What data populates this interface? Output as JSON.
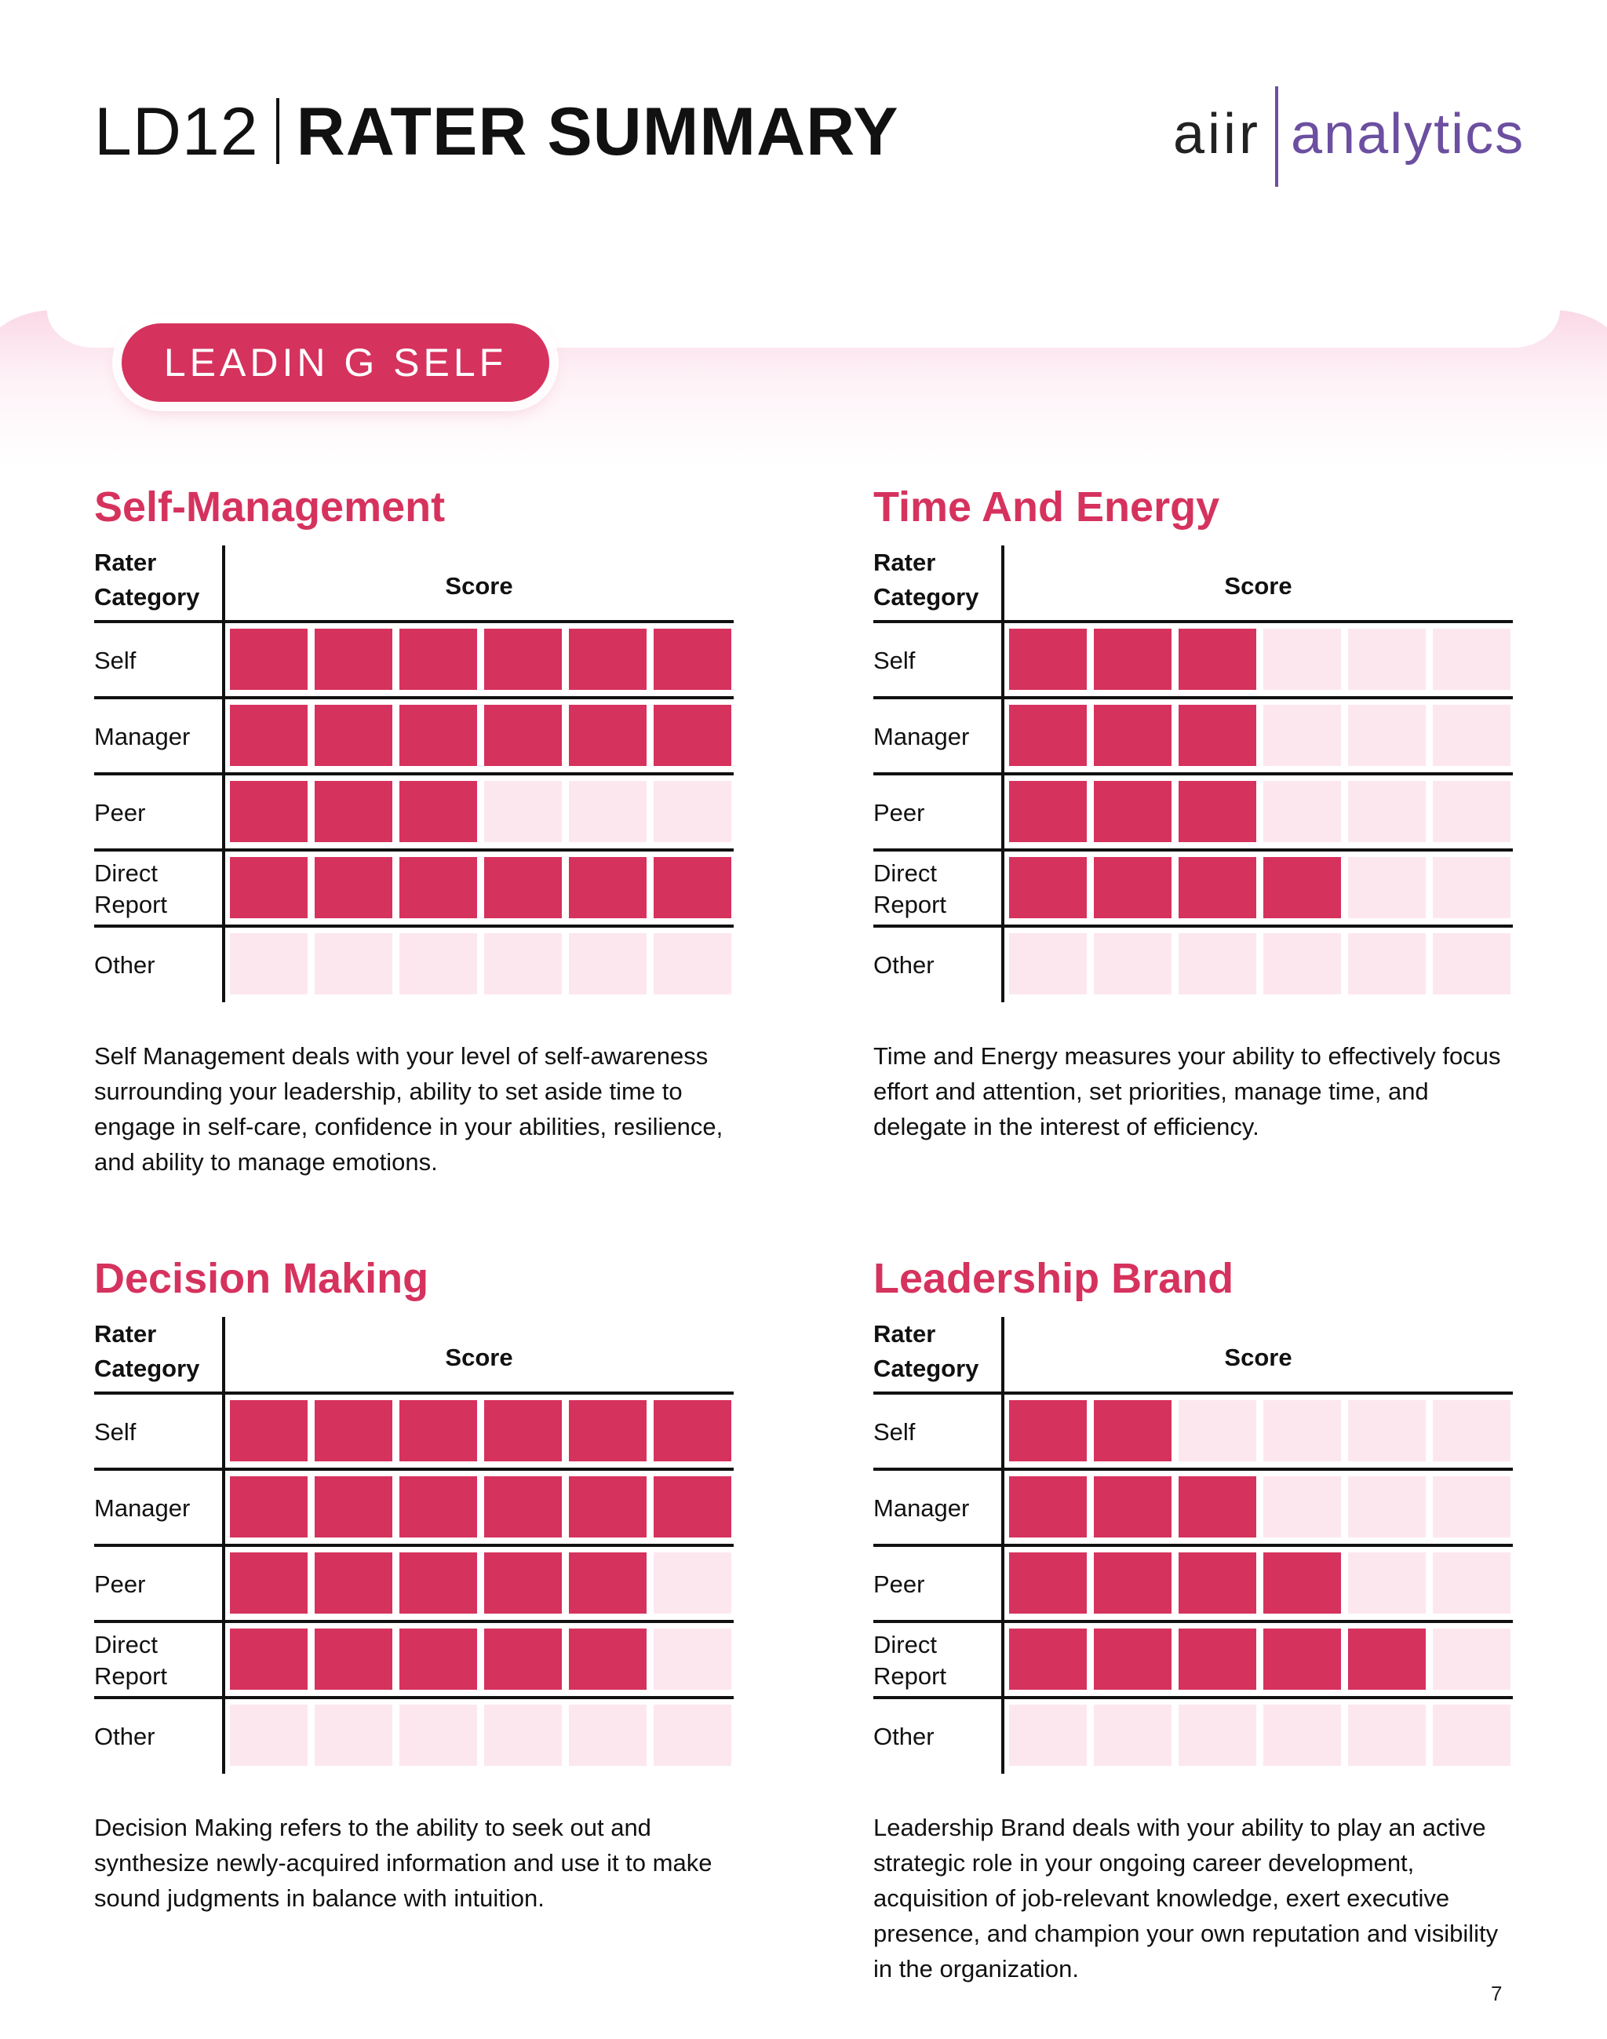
{
  "header": {
    "code": "LD12",
    "title": "RATER SUMMARY",
    "logo_left": "aiir",
    "logo_right": "analytics"
  },
  "banner": {
    "label": "LEADIN G SELF"
  },
  "colors": {
    "accent": "#d6325e",
    "empty": "#fde7ef",
    "logo": "#6c4fa0"
  },
  "table_labels": {
    "rater_category": "Rater Category",
    "score": "Score",
    "max_score": 6
  },
  "sections": [
    {
      "heading": "Self-Management",
      "rows": [
        {
          "label": "Self",
          "score": 6
        },
        {
          "label": "Manager",
          "score": 6
        },
        {
          "label": "Peer",
          "score": 3
        },
        {
          "label": "Direct Report",
          "score": 6
        },
        {
          "label": "Other",
          "score": 0
        }
      ],
      "description": "Self Management deals with your level of self-awareness surrounding your leadership, ability to set aside time to engage in self-care, confidence in your abilities, resilience, and ability to manage emotions."
    },
    {
      "heading": "Time And Energy",
      "rows": [
        {
          "label": "Self",
          "score": 3
        },
        {
          "label": "Manager",
          "score": 3
        },
        {
          "label": "Peer",
          "score": 3
        },
        {
          "label": "Direct Report",
          "score": 4
        },
        {
          "label": "Other",
          "score": 0
        }
      ],
      "description": "Time and Energy measures your ability to effectively focus effort and attention, set priorities, manage time, and delegate in the interest of efficiency."
    },
    {
      "heading": "Decision Making",
      "rows": [
        {
          "label": "Self",
          "score": 6
        },
        {
          "label": "Manager",
          "score": 6
        },
        {
          "label": "Peer",
          "score": 5
        },
        {
          "label": "Direct Report",
          "score": 5
        },
        {
          "label": "Other",
          "score": 0
        }
      ],
      "description": "Decision Making refers to the ability to seek out and synthesize newly-acquired information and use it to make sound judgments in balance with intuition."
    },
    {
      "heading": "Leadership Brand",
      "rows": [
        {
          "label": "Self",
          "score": 2
        },
        {
          "label": "Manager",
          "score": 3
        },
        {
          "label": "Peer",
          "score": 4
        },
        {
          "label": "Direct Report",
          "score": 5
        },
        {
          "label": "Other",
          "score": 0
        }
      ],
      "description": "Leadership Brand deals with your ability to play an active strategic role in your ongoing career development, acquisition of job-relevant knowledge, exert executive presence, and champion your own reputation and visibility in the organization."
    }
  ],
  "page_number": "7"
}
